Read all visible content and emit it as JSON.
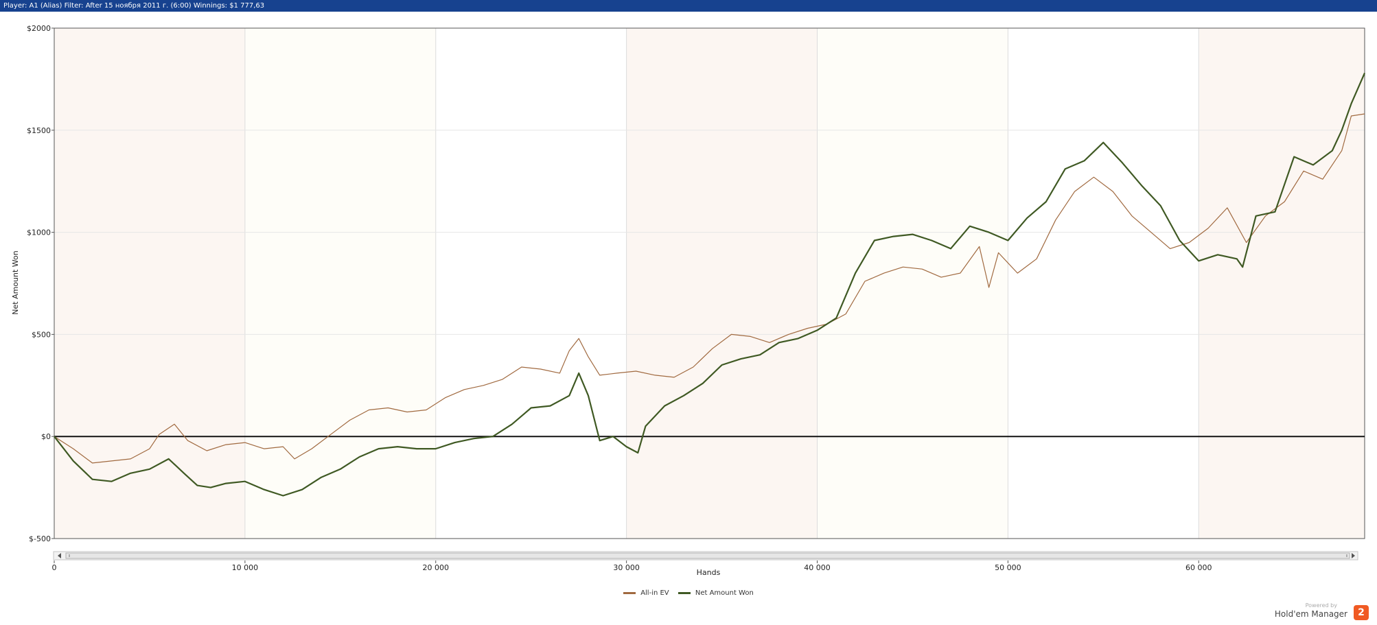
{
  "header": {
    "text": "Player: A1 (Alias) Filter: After 15 ноября 2011 г. (6:00) Winnings: $1 777,63"
  },
  "chart_data": {
    "type": "line",
    "xlabel": "Hands",
    "ylabel": "Net Amount Won",
    "xlim": [
      0,
      68700
    ],
    "ylim": [
      -500,
      2000
    ],
    "x_ticks": [
      0,
      10000,
      20000,
      30000,
      40000,
      50000,
      60000
    ],
    "x_tick_labels": [
      "0",
      "10 000",
      "20 000",
      "30 000",
      "40 000",
      "50 000",
      "60 000"
    ],
    "y_ticks": [
      -500,
      0,
      500,
      1000,
      1500,
      2000
    ],
    "y_tick_labels": [
      "$-500",
      "$0",
      "$500",
      "$1000",
      "$1500",
      "$2000"
    ],
    "grid": true,
    "legend_position": "bottom-center",
    "series": [
      {
        "name": "All-in EV",
        "color": "#a0693f",
        "x": [
          0,
          1000,
          2000,
          3000,
          4000,
          5000,
          5500,
          6300,
          7000,
          8000,
          9000,
          10000,
          11000,
          12000,
          12600,
          13500,
          14500,
          15500,
          16500,
          17500,
          18500,
          19500,
          20500,
          21500,
          22500,
          23500,
          24500,
          25500,
          26500,
          27000,
          27500,
          28000,
          28600,
          29500,
          30500,
          31500,
          32500,
          33500,
          34500,
          35500,
          36500,
          37500,
          38500,
          39500,
          40500,
          41500,
          42500,
          43500,
          44500,
          45500,
          46500,
          47500,
          48500,
          49000,
          49500,
          50500,
          51500,
          52500,
          53500,
          54500,
          55500,
          56500,
          57500,
          58500,
          59500,
          60500,
          61500,
          62500,
          63500,
          64500,
          65500,
          66500,
          67500,
          68000,
          68700
        ],
        "y": [
          0,
          -60,
          -130,
          -120,
          -110,
          -60,
          10,
          60,
          -20,
          -70,
          -40,
          -30,
          -60,
          -50,
          -110,
          -60,
          10,
          80,
          130,
          140,
          120,
          130,
          190,
          230,
          250,
          280,
          340,
          330,
          310,
          420,
          480,
          390,
          300,
          310,
          320,
          300,
          290,
          340,
          430,
          500,
          490,
          460,
          500,
          530,
          550,
          600,
          760,
          800,
          830,
          820,
          780,
          800,
          930,
          730,
          900,
          800,
          870,
          1060,
          1200,
          1270,
          1200,
          1080,
          1000,
          920,
          950,
          1020,
          1120,
          950,
          1080,
          1150,
          1300,
          1260,
          1400,
          1570,
          1580
        ]
      },
      {
        "name": "Net Amount Won",
        "color": "#3f5923",
        "x": [
          0,
          1000,
          2000,
          3000,
          4000,
          5000,
          6000,
          6800,
          7500,
          8200,
          9000,
          10000,
          11000,
          12000,
          13000,
          14000,
          15000,
          16000,
          17000,
          18000,
          19000,
          20000,
          21000,
          22000,
          23000,
          24000,
          25000,
          26000,
          27000,
          27500,
          28000,
          28600,
          29300,
          30000,
          30600,
          31000,
          32000,
          33000,
          34000,
          35000,
          36000,
          37000,
          38000,
          39000,
          40000,
          41000,
          42000,
          43000,
          44000,
          45000,
          46000,
          47000,
          48000,
          49000,
          50000,
          51000,
          52000,
          53000,
          54000,
          55000,
          56000,
          57000,
          58000,
          59000,
          60000,
          61000,
          62000,
          62300,
          63000,
          64000,
          65000,
          66000,
          67000,
          67500,
          68000,
          68700
        ],
        "y": [
          0,
          -120,
          -210,
          -220,
          -180,
          -160,
          -110,
          -180,
          -240,
          -250,
          -230,
          -220,
          -260,
          -290,
          -260,
          -200,
          -160,
          -100,
          -60,
          -50,
          -60,
          -60,
          -30,
          -10,
          0,
          60,
          140,
          150,
          200,
          310,
          200,
          -20,
          0,
          -50,
          -80,
          50,
          150,
          200,
          260,
          350,
          380,
          400,
          460,
          480,
          520,
          580,
          800,
          960,
          980,
          990,
          960,
          920,
          1030,
          1000,
          960,
          1070,
          1150,
          1310,
          1350,
          1440,
          1340,
          1230,
          1130,
          960,
          860,
          890,
          870,
          830,
          1080,
          1100,
          1370,
          1330,
          1400,
          1500,
          1630,
          1780
        ]
      }
    ]
  },
  "branding": {
    "powered": "Powered by",
    "name": "Hold'em Manager",
    "logo": "2"
  }
}
